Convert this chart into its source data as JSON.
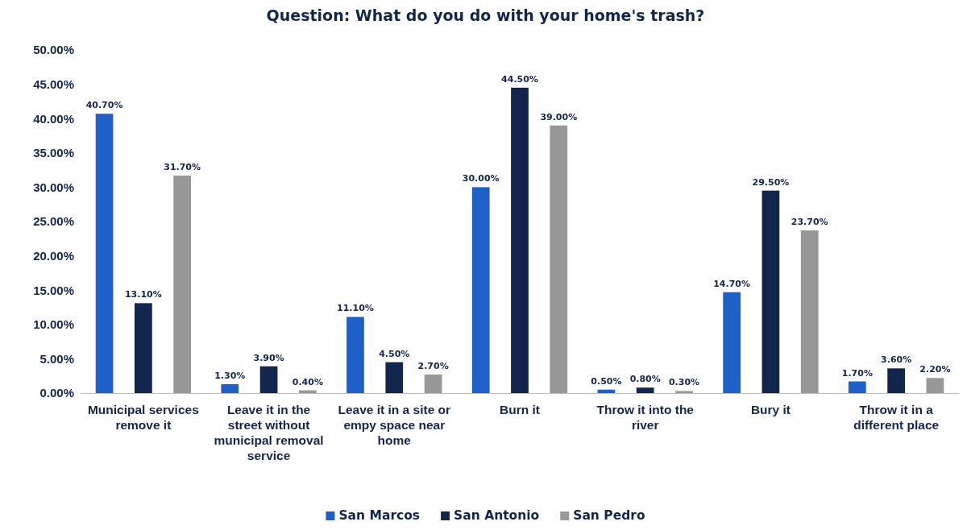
{
  "chart_data": {
    "type": "bar",
    "title": "Question: What do you do with your home's trash?",
    "categories": [
      "Municipal services remove it",
      "Leave it in the street without municipal removal service",
      "Leave it in a site or empy space near home",
      "Burn it",
      "Throw it into the river",
      "Bury it",
      "Throw it in a different place"
    ],
    "series": [
      {
        "name": "San Marcos",
        "color": "#1f5fc8",
        "values": [
          40.7,
          1.3,
          11.1,
          30.0,
          0.5,
          14.7,
          1.7
        ],
        "value_labels": [
          "40.70%",
          "1.30%",
          "11.10%",
          "30.00%",
          "0.50%",
          "14.70%",
          "1.70%"
        ]
      },
      {
        "name": "San Antonio",
        "color": "#12254d",
        "values": [
          13.1,
          3.9,
          4.5,
          44.5,
          0.8,
          29.5,
          3.6
        ],
        "value_labels": [
          "13.10%",
          "3.90%",
          "4.50%",
          "44.50%",
          "0.80%",
          "29.50%",
          "3.60%"
        ]
      },
      {
        "name": "San Pedro",
        "color": "#989898",
        "values": [
          31.7,
          0.4,
          2.7,
          39.0,
          0.3,
          23.7,
          2.2
        ],
        "value_labels": [
          "31.70%",
          "0.40%",
          "2.70%",
          "39.00%",
          "0.30%",
          "23.70%",
          "2.20%"
        ]
      }
    ],
    "ylim": [
      0,
      50
    ],
    "yticks": [
      {
        "value": 0,
        "label": "0.00%"
      },
      {
        "value": 5,
        "label": "5.00%"
      },
      {
        "value": 10,
        "label": "10.00%"
      },
      {
        "value": 15,
        "label": "15.00%"
      },
      {
        "value": 20,
        "label": "20.00%"
      },
      {
        "value": 25,
        "label": "25.00%"
      },
      {
        "value": 30,
        "label": "30.00%"
      },
      {
        "value": 35,
        "label": "35.00%"
      },
      {
        "value": 40,
        "label": "40.00%"
      },
      {
        "value": 45,
        "label": "45.00%"
      },
      {
        "value": 50,
        "label": "50.00%"
      }
    ],
    "grid": false,
    "legend": "bottom"
  }
}
